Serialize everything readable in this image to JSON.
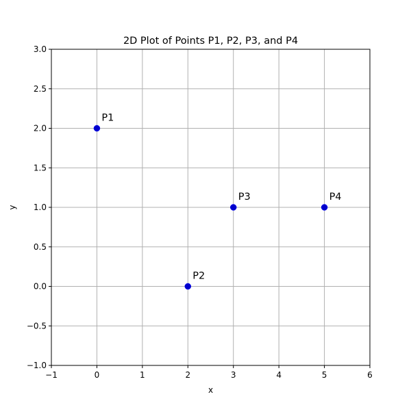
{
  "chart_data": {
    "type": "scatter",
    "title": "2D Plot of Points P1, P2, P3, and P4",
    "xlabel": "x",
    "ylabel": "y",
    "xlim": [
      -1,
      6
    ],
    "ylim": [
      -1,
      3
    ],
    "xticks": [
      -1,
      0,
      1,
      2,
      3,
      4,
      5,
      6
    ],
    "yticks": [
      -1.0,
      -0.5,
      0.0,
      0.5,
      1.0,
      1.5,
      2.0,
      2.5,
      3.0
    ],
    "xtick_labels": [
      "−1",
      "0",
      "1",
      "2",
      "3",
      "4",
      "5",
      "6"
    ],
    "ytick_labels": [
      "−1.0",
      "−0.5",
      "0.0",
      "0.5",
      "1.0",
      "1.5",
      "2.0",
      "2.5",
      "3.0"
    ],
    "grid": true,
    "point_color": "#0000cc",
    "points": [
      {
        "label": "P1",
        "x": 0,
        "y": 2
      },
      {
        "label": "P2",
        "x": 2,
        "y": 0
      },
      {
        "label": "P3",
        "x": 3,
        "y": 1
      },
      {
        "label": "P4",
        "x": 5,
        "y": 1
      }
    ]
  }
}
